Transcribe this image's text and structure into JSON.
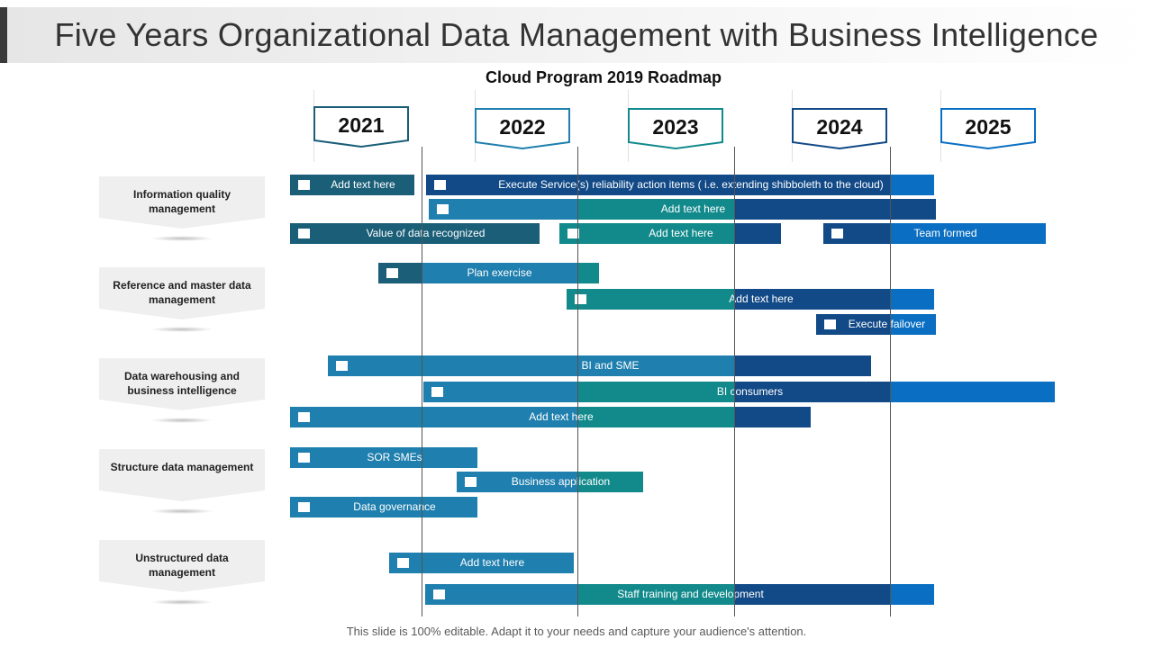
{
  "header": {
    "title": "Five Years Organizational Data Management with Business Intelligence",
    "subtitle": "Cloud Program 2019 Roadmap"
  },
  "years": [
    "2021",
    "2022",
    "2023",
    "2024",
    "2025"
  ],
  "categories": [
    "Information quality management",
    "Reference and master data management",
    "Data warehousing and business intelligence",
    "Structure data management",
    "Unstructured data management"
  ],
  "tasks": [
    {
      "label": "Add text here",
      "category": "Information quality management"
    },
    {
      "label": "Execute Service(s) reliability  action items ( i.e. extending shibboleth to the cloud)",
      "category": "Information quality management"
    },
    {
      "label": "Add text here",
      "category": "Information quality management"
    },
    {
      "label": "Value of data recognized",
      "category": "Information quality management"
    },
    {
      "label": "Add text here",
      "category": "Information quality management"
    },
    {
      "label": "Team formed",
      "category": "Information quality management"
    },
    {
      "label": "Plan exercise",
      "category": "Reference and master data management"
    },
    {
      "label": "Add text here",
      "category": "Reference and master data management"
    },
    {
      "label": "Execute failover",
      "category": "Reference and master data management"
    },
    {
      "label": "BI and SME",
      "category": "Data warehousing and business intelligence"
    },
    {
      "label": "BI consumers",
      "category": "Data warehousing and business intelligence"
    },
    {
      "label": "Add text here",
      "category": "Data warehousing and business intelligence"
    },
    {
      "label": "SOR SMEs",
      "category": "Structure data management"
    },
    {
      "label": "Business application",
      "category": "Structure data management"
    },
    {
      "label": "Data governance",
      "category": "Structure data management"
    },
    {
      "label": "Add text here",
      "category": "Unstructured data management"
    },
    {
      "label": "Staff training and development",
      "category": "Unstructured data management"
    }
  ],
  "colors": {
    "dark_teal": "#1a5e78",
    "mid_blue": "#1f7fae",
    "teal": "#128a8c",
    "navy": "#124a87",
    "bright_blue": "#0a6fc2",
    "year_tab_border": "#1f7fae"
  },
  "footer": {
    "note": "This slide is 100% editable. Adapt it to your needs and capture your audience's attention."
  }
}
